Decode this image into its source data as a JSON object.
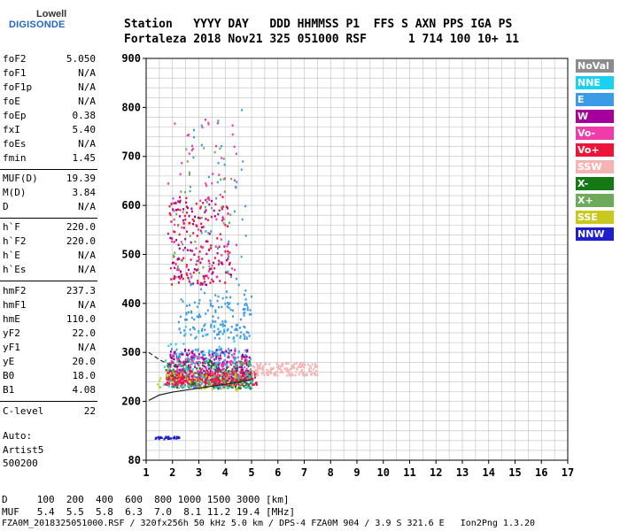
{
  "logo": {
    "line1": "Lowell",
    "line2": "DIGISONDE"
  },
  "header": {
    "row1": "Station   YYYY DAY   DDD HHMMSS P1  FFS S AXN PPS IGA PS",
    "row2": "Fortaleza 2018 Nov21 325 051000 RSF      1 714 100 10+ 11"
  },
  "params_group1": [
    {
      "key": "foF2",
      "value": "5.050"
    },
    {
      "key": "foF1",
      "value": "N/A"
    },
    {
      "key": "foF1p",
      "value": "N/A"
    },
    {
      "key": "foE",
      "value": "N/A"
    },
    {
      "key": "foEp",
      "value": "0.38"
    },
    {
      "key": "fxI",
      "value": "5.40"
    },
    {
      "key": "foEs",
      "value": "N/A"
    },
    {
      "key": "fmin",
      "value": "1.45"
    }
  ],
  "params_group2": [
    {
      "key": "MUF(D)",
      "value": "19.39"
    },
    {
      "key": "M(D)",
      "value": "3.84"
    },
    {
      "key": "D",
      "value": "N/A"
    }
  ],
  "params_group3": [
    {
      "key": "h`F",
      "value": "220.0"
    },
    {
      "key": "h`F2",
      "value": "220.0"
    },
    {
      "key": "h`E",
      "value": "N/A"
    },
    {
      "key": "h`Es",
      "value": "N/A"
    }
  ],
  "params_group4": [
    {
      "key": "hmF2",
      "value": "237.3"
    },
    {
      "key": "hmF1",
      "value": "N/A"
    },
    {
      "key": "hmE",
      "value": "110.0"
    },
    {
      "key": "yF2",
      "value": "22.0"
    },
    {
      "key": "yF1",
      "value": "N/A"
    },
    {
      "key": "yE",
      "value": "20.0"
    },
    {
      "key": "B0",
      "value": "18.0"
    },
    {
      "key": "B1",
      "value": "4.08"
    }
  ],
  "params_group5": [
    {
      "key": "C-level",
      "value": "22"
    }
  ],
  "auto": {
    "line1": "Auto:",
    "line2": "Artist5",
    "line3": "500200"
  },
  "legend": [
    {
      "label": "NoVal",
      "color": "#8c8c8c"
    },
    {
      "label": "NNE",
      "color": "#19d2f0"
    },
    {
      "label": "E",
      "color": "#3c9be6"
    },
    {
      "label": "W",
      "color": "#a5009b"
    },
    {
      "label": "Vo-",
      "color": "#f03caa"
    },
    {
      "label": "Vo+",
      "color": "#ee1439"
    },
    {
      "label": "SSW",
      "color": "#f5b4b4"
    },
    {
      "label": "X-",
      "color": "#147814"
    },
    {
      "label": "X+",
      "color": "#6eaa5a"
    },
    {
      "label": "SSE",
      "color": "#c8c81e"
    },
    {
      "label": "NNW",
      "color": "#1e1ecd"
    }
  ],
  "bottom": {
    "d_row": "D     100  200  400  600  800 1000 1500 3000 [km]",
    "muf_row": "MUF   5.4  5.5  5.8  6.3  7.0  8.1 11.2 19.4 [MHz]",
    "footer": "FZA0M_2018325051000.RSF / 320fx256h 50 kHz 5.0 km / DPS-4 FZA0M 904 / 3.9 S 321.6 E   Ion2Png 1.3.20"
  },
  "chart_data": {
    "type": "scatter",
    "xlim": [
      1,
      17
    ],
    "ylim": [
      80,
      900
    ],
    "xticks": [
      "1",
      "2",
      "3",
      "4",
      "5",
      "6",
      "7",
      "8",
      "9",
      "10",
      "11",
      "12",
      "13",
      "14",
      "15",
      "16",
      "17"
    ],
    "yticks": [
      "80",
      "200",
      "300",
      "400",
      "500",
      "600",
      "700",
      "800",
      "900"
    ],
    "grid": true,
    "trace_clusters": [
      {
        "name": "E",
        "x": [
          1.8,
          5.0
        ],
        "y": [
          230,
          310
        ],
        "count": 260
      },
      {
        "name": "E",
        "x": [
          2.2,
          5.0
        ],
        "y": [
          330,
          420
        ],
        "count": 120
      },
      {
        "name": "W",
        "x": [
          1.8,
          4.9
        ],
        "y": [
          245,
          310
        ],
        "count": 240
      },
      {
        "name": "Vo-",
        "x": [
          1.8,
          4.8
        ],
        "y": [
          240,
          300
        ],
        "count": 160
      },
      {
        "name": "Vo+",
        "x": [
          1.7,
          5.2
        ],
        "y": [
          235,
          265
        ],
        "count": 240
      },
      {
        "name": "SSW",
        "x": [
          5.0,
          7.5
        ],
        "y": [
          255,
          280
        ],
        "count": 140
      },
      {
        "name": "X-",
        "x": [
          1.7,
          5.0
        ],
        "y": [
          228,
          285
        ],
        "count": 90
      },
      {
        "name": "X+",
        "x": [
          1.7,
          5.0
        ],
        "y": [
          228,
          285
        ],
        "count": 80
      },
      {
        "name": "SSE",
        "x": [
          1.4,
          4.5
        ],
        "y": [
          225,
          260
        ],
        "count": 50
      },
      {
        "name": "NNE",
        "x": [
          1.6,
          5.0
        ],
        "y": [
          230,
          360
        ],
        "count": 60
      },
      {
        "name": "Vo+",
        "x": [
          1.8,
          4.2
        ],
        "y": [
          440,
          620
        ],
        "count": 120
      },
      {
        "name": "W",
        "x": [
          1.8,
          4.2
        ],
        "y": [
          440,
          620
        ],
        "count": 80
      },
      {
        "name": "Vo-",
        "x": [
          1.8,
          4.5
        ],
        "y": [
          450,
          780
        ],
        "count": 70
      },
      {
        "name": "X+",
        "x": [
          2.0,
          4.2
        ],
        "y": [
          450,
          720
        ],
        "count": 40
      },
      {
        "name": "E",
        "x": [
          2.5,
          4.8
        ],
        "y": [
          340,
          800
        ],
        "count": 60
      },
      {
        "name": "NNW",
        "x": [
          1.3,
          2.3
        ],
        "y": [
          125,
          130
        ],
        "count": 30
      }
    ],
    "profile_curve": {
      "x": [
        1.1,
        1.5,
        2.0,
        2.5,
        3.0,
        3.5,
        4.0,
        4.5,
        5.0
      ],
      "y": [
        202,
        213,
        219,
        223,
        227,
        231,
        235,
        239,
        245
      ]
    },
    "dashed_curve": {
      "x": [
        1.1,
        1.5,
        1.9,
        2.2
      ],
      "y": [
        300,
        285,
        275,
        270
      ]
    }
  }
}
